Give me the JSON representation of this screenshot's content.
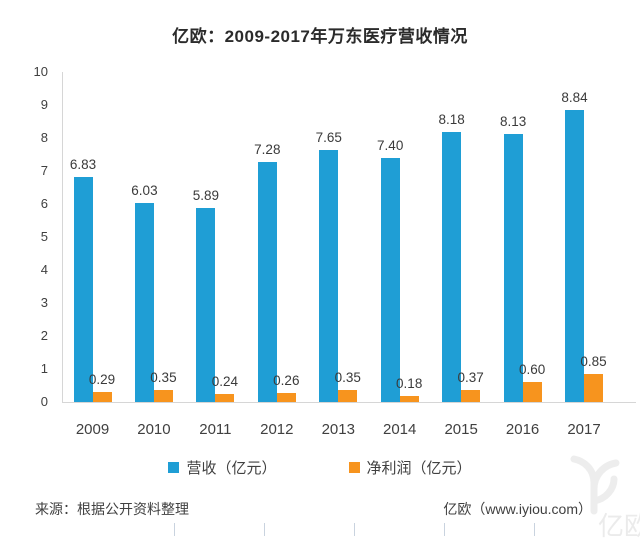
{
  "chart_data": {
    "type": "bar",
    "title": "亿欧：2009-2017年万东医疗营收情况",
    "categories": [
      "2009",
      "2010",
      "2011",
      "2012",
      "2013",
      "2014",
      "2015",
      "2016",
      "2017"
    ],
    "series": [
      {
        "name": "营收（亿元）",
        "color": "#1F9ED5",
        "values": [
          6.83,
          6.03,
          5.89,
          7.28,
          7.65,
          7.4,
          8.18,
          8.13,
          8.84
        ]
      },
      {
        "name": "净利润（亿元）",
        "color": "#F7941E",
        "values": [
          0.29,
          0.35,
          0.24,
          0.26,
          0.35,
          0.18,
          0.37,
          0.6,
          0.85
        ]
      }
    ],
    "ylim": [
      0,
      10
    ],
    "ytick_step": 1,
    "grid": false,
    "value_labels": true,
    "value_label_decimals": 2,
    "legend_position": "bottom"
  },
  "footer": {
    "source": "来源：根据公开资料整理",
    "site": "亿欧（www.iyiou.com）"
  },
  "watermark": {
    "name": "iyiou-logo",
    "text": "亿欧",
    "color": "#ededed"
  }
}
